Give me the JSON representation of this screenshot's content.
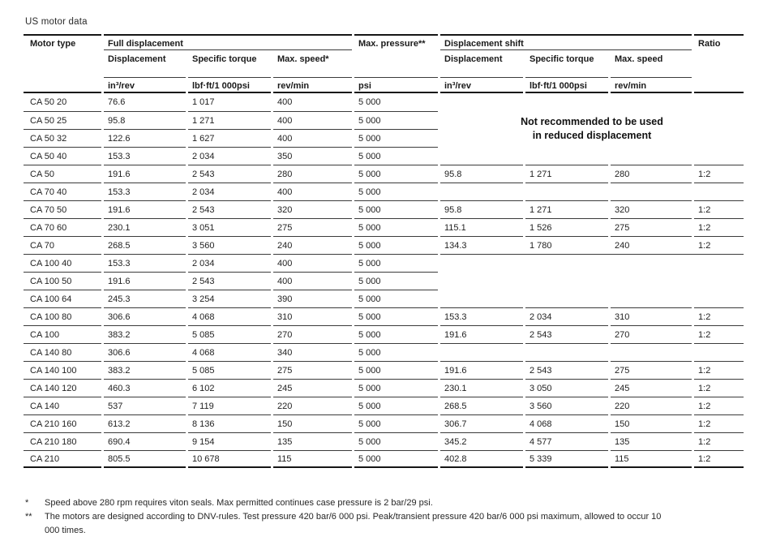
{
  "title": "US motor data",
  "table": {
    "header": {
      "motor_type": "Motor type",
      "full_displacement": "Full displacement",
      "max_pressure": "Max. pressure**",
      "displacement_shift": "Displacement shift",
      "ratio": "Ratio",
      "displacement": "Displacement",
      "specific_torque": "Specific torque",
      "max_speed_full": "Max. speed*",
      "max_speed_shift": "Max. speed",
      "unit_displacement": "in³/rev",
      "unit_torque": "lbf·ft/1 000psi",
      "unit_speed": "rev/min",
      "unit_pressure": "psi"
    },
    "not_recommended_note": [
      "Not recommended to be used",
      "in reduced displacement"
    ],
    "rows": [
      {
        "motor": "CA 50 20",
        "disp": "76.6",
        "torque": "1 017",
        "speed": "400",
        "pressure": "5 000",
        "right": "blockA-start",
        "ds_disp": "",
        "ds_torque": "",
        "ds_speed": "",
        "ratio": ""
      },
      {
        "motor": "CA 50 25",
        "disp": "95.8",
        "torque": "1 271",
        "speed": "400",
        "pressure": "5 000",
        "right": "skip",
        "ds_disp": "",
        "ds_torque": "",
        "ds_speed": "",
        "ratio": ""
      },
      {
        "motor": "CA 50 32",
        "disp": "122.6",
        "torque": "1 627",
        "speed": "400",
        "pressure": "5 000",
        "right": "skip",
        "ds_disp": "",
        "ds_torque": "",
        "ds_speed": "",
        "ratio": ""
      },
      {
        "motor": "CA 50 40",
        "disp": "153.3",
        "torque": "2 034",
        "speed": "350",
        "pressure": "5 000",
        "right": "skip",
        "ds_disp": "",
        "ds_torque": "",
        "ds_speed": "",
        "ratio": ""
      },
      {
        "motor": "CA 50",
        "disp": "191.6",
        "torque": "2 543",
        "speed": "280",
        "pressure": "5 000",
        "right": "cells",
        "ds_disp": "95.8",
        "ds_torque": "1 271",
        "ds_speed": "280",
        "ratio": "1:2"
      },
      {
        "motor": "CA 70 40",
        "disp": "153.3",
        "torque": "2 034",
        "speed": "400",
        "pressure": "5 000",
        "right": "cells",
        "ds_disp": "",
        "ds_torque": "",
        "ds_speed": "",
        "ratio": ""
      },
      {
        "motor": "CA 70 50",
        "disp": "191.6",
        "torque": "2 543",
        "speed": "320",
        "pressure": "5 000",
        "right": "cells",
        "ds_disp": "95.8",
        "ds_torque": "1 271",
        "ds_speed": "320",
        "ratio": "1:2"
      },
      {
        "motor": "CA 70 60",
        "disp": "230.1",
        "torque": "3 051",
        "speed": "275",
        "pressure": "5 000",
        "right": "cells",
        "ds_disp": "115.1",
        "ds_torque": "1 526",
        "ds_speed": "275",
        "ratio": "1:2"
      },
      {
        "motor": "CA 70",
        "disp": "268.5",
        "torque": "3 560",
        "speed": "240",
        "pressure": "5 000",
        "right": "cells",
        "ds_disp": "134.3",
        "ds_torque": "1 780",
        "ds_speed": "240",
        "ratio": "1:2"
      },
      {
        "motor": "CA 100 40",
        "disp": "153.3",
        "torque": "2 034",
        "speed": "400",
        "pressure": "5 000",
        "right": "blockB-start",
        "ds_disp": "",
        "ds_torque": "",
        "ds_speed": "",
        "ratio": ""
      },
      {
        "motor": "CA 100 50",
        "disp": "191.6",
        "torque": "2 543",
        "speed": "400",
        "pressure": "5 000",
        "right": "skip",
        "ds_disp": "",
        "ds_torque": "",
        "ds_speed": "",
        "ratio": ""
      },
      {
        "motor": "CA 100 64",
        "disp": "245.3",
        "torque": "3 254",
        "speed": "390",
        "pressure": "5 000",
        "right": "skip",
        "ds_disp": "",
        "ds_torque": "",
        "ds_speed": "",
        "ratio": ""
      },
      {
        "motor": "CA 100 80",
        "disp": "306.6",
        "torque": "4 068",
        "speed": "310",
        "pressure": "5 000",
        "right": "cells",
        "ds_disp": "153.3",
        "ds_torque": "2 034",
        "ds_speed": "310",
        "ratio": "1:2"
      },
      {
        "motor": "CA 100",
        "disp": "383.2",
        "torque": "5 085",
        "speed": "270",
        "pressure": "5 000",
        "right": "cells",
        "ds_disp": "191.6",
        "ds_torque": "2 543",
        "ds_speed": "270",
        "ratio": "1:2"
      },
      {
        "motor": "CA 140 80",
        "disp": "306.6",
        "torque": "4 068",
        "speed": "340",
        "pressure": "5 000",
        "right": "cells",
        "ds_disp": "",
        "ds_torque": "",
        "ds_speed": "",
        "ratio": ""
      },
      {
        "motor": "CA 140 100",
        "disp": "383.2",
        "torque": "5 085",
        "speed": "275",
        "pressure": "5 000",
        "right": "cells",
        "ds_disp": "191.6",
        "ds_torque": "2 543",
        "ds_speed": "275",
        "ratio": "1:2"
      },
      {
        "motor": "CA 140 120",
        "disp": "460.3",
        "torque": "6 102",
        "speed": "245",
        "pressure": "5 000",
        "right": "cells",
        "ds_disp": "230.1",
        "ds_torque": "3 050",
        "ds_speed": "245",
        "ratio": "1:2"
      },
      {
        "motor": "CA 140",
        "disp": "537",
        "torque": "7 119",
        "speed": "220",
        "pressure": "5 000",
        "right": "cells",
        "ds_disp": "268.5",
        "ds_torque": "3 560",
        "ds_speed": "220",
        "ratio": "1:2"
      },
      {
        "motor": "CA 210 160",
        "disp": "613.2",
        "torque": "8 136",
        "speed": "150",
        "pressure": "5 000",
        "right": "cells",
        "ds_disp": "306.7",
        "ds_torque": "4 068",
        "ds_speed": "150",
        "ratio": "1:2"
      },
      {
        "motor": "CA 210 180",
        "disp": "690.4",
        "torque": "9 154",
        "speed": "135",
        "pressure": "5 000",
        "right": "cells",
        "ds_disp": "345.2",
        "ds_torque": "4 577",
        "ds_speed": "135",
        "ratio": "1:2"
      },
      {
        "motor": "CA 210",
        "disp": "805.5",
        "torque": "10 678",
        "speed": "115",
        "pressure": "5 000",
        "right": "cells",
        "ds_disp": "402.8",
        "ds_torque": "5 339",
        "ds_speed": "115",
        "ratio": "1:2"
      }
    ]
  },
  "footnotes": [
    {
      "marker": "*",
      "text": "Speed above 280 rpm requires viton seals. Max permitted continues case pressure is 2 bar/29 psi."
    },
    {
      "marker": "**",
      "text": "The motors are designed according to DNV-rules. Test pressure 420 bar/6 000 psi. Peak/transient pressure 420 bar/6 000 psi maximum, allowed to occur 10 000 times."
    }
  ]
}
